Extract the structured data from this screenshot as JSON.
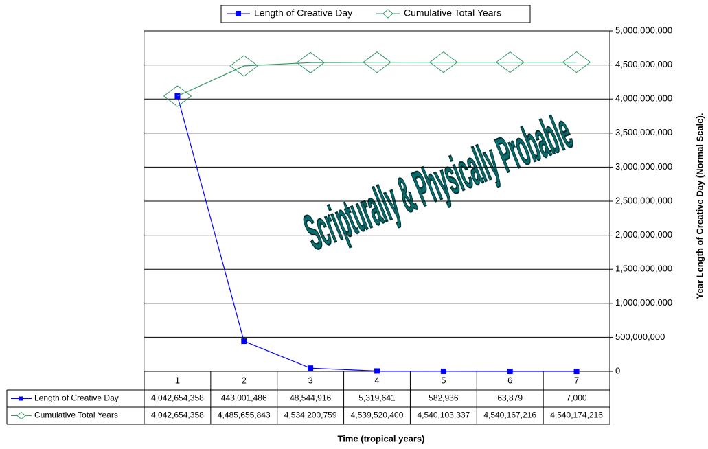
{
  "chart_data": {
    "type": "line",
    "annotation": "Scripturally & Physically Probable",
    "xlabel": "Time (tropical years)",
    "ylabel": "Year Length of Creative Day (Normal Scale).",
    "categories": [
      "1",
      "2",
      "3",
      "4",
      "5",
      "6",
      "7"
    ],
    "series": [
      {
        "name": "Length of Creative Day",
        "color": "#0000ff",
        "marker": "square",
        "values": [
          4042654358,
          443001486,
          48544916,
          5319641,
          582936,
          63879,
          7000
        ],
        "value_labels": [
          "4,042,654,358",
          "443,001,486",
          "48,544,916",
          "5,319,641",
          "582,936",
          "63,879",
          "7,000"
        ]
      },
      {
        "name": "Cumulative Total Years",
        "color": "#339966",
        "marker": "diamond",
        "values": [
          4042654358,
          4485655843,
          4534200759,
          4539520400,
          4540103337,
          4540167216,
          4540174216
        ],
        "value_labels": [
          "4,042,654,358",
          "4,485,655,843",
          "4,534,200,759",
          "4,539,520,400",
          "4,540,103,337",
          "4,540,167,216",
          "4,540,174,216"
        ]
      }
    ],
    "ylim": [
      0,
      5000000000
    ],
    "yticks": [
      0,
      {
        "value": 500000000,
        "label": "500,000,000"
      },
      {
        "value": 1000000000,
        "label": "1,000,000,000"
      },
      {
        "value": 1500000000,
        "label": "1,500,000,000"
      },
      {
        "value": 2000000000,
        "label": "2,000,000,000"
      },
      {
        "value": 2500000000,
        "label": "2,500,000,000"
      },
      {
        "value": 3000000000,
        "label": "3,000,000,000"
      },
      {
        "value": 3500000000,
        "label": "3,500,000,000"
      },
      {
        "value": 4000000000,
        "label": "4,000,000,000"
      },
      {
        "value": 4500000000,
        "label": "4,500,000,000"
      },
      {
        "value": 5000000000,
        "label": "5,000,000,000"
      }
    ],
    "grid": true,
    "legend": "top",
    "axis_side": "right"
  }
}
